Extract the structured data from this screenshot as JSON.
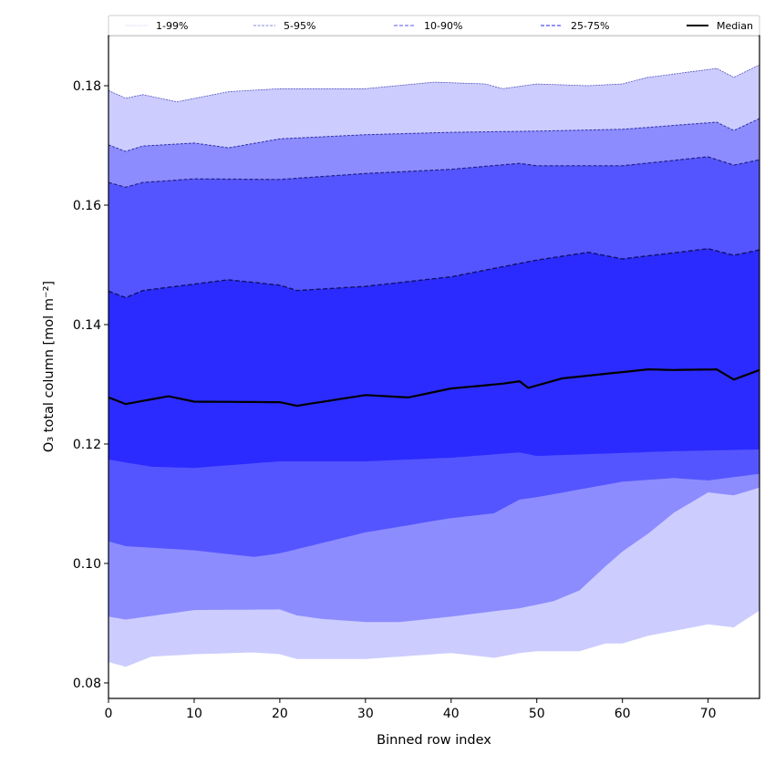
{
  "chart_data": {
    "type": "area",
    "title": "",
    "xlabel": "Binned row index",
    "ylabel": "O₃ total column [mol m⁻²]",
    "xlim": [
      0,
      76
    ],
    "ylim": [
      0.0774,
      0.1884
    ],
    "xticks": [
      0,
      10,
      20,
      30,
      40,
      50,
      60,
      70
    ],
    "xtick_labels": [
      "0",
      "10",
      "20",
      "30",
      "40",
      "50",
      "60",
      "70"
    ],
    "yticks": [
      0.08,
      0.1,
      0.12,
      0.14,
      0.16,
      0.18
    ],
    "ytick_labels": [
      "0.08",
      "0.10",
      "0.12",
      "0.14",
      "0.16",
      "0.18"
    ],
    "grid": false,
    "legend": {
      "placement": "top-outside",
      "entries": [
        {
          "label": "1-99%",
          "color": "#ccccff",
          "style": "dotted-thin"
        },
        {
          "label": "5-95%",
          "color": "#8c8cff",
          "style": "dashed-thin"
        },
        {
          "label": "10-90%",
          "color": "#7070ff",
          "style": "dashed"
        },
        {
          "label": "25-75%",
          "color": "#5555ee",
          "style": "dashed"
        },
        {
          "label": "Median",
          "color": "#000000",
          "style": "solid"
        }
      ]
    },
    "band_colors": {
      "p01_p05": "#ccccff",
      "p05_p10": "#8c8cff",
      "p10_p25": "#5555ff",
      "p25_p75": "#2b2bff"
    },
    "series": [
      {
        "name": "p01",
        "x": [
          0,
          2,
          5,
          10,
          17,
          20,
          22,
          30,
          40,
          45,
          48,
          50,
          55,
          58,
          60,
          63,
          66,
          70,
          73,
          76
        ],
        "values": [
          0.0835,
          0.0827,
          0.0844,
          0.0848,
          0.0851,
          0.0848,
          0.084,
          0.084,
          0.085,
          0.0842,
          0.085,
          0.0853,
          0.0853,
          0.0866,
          0.0866,
          0.0879,
          0.0887,
          0.0898,
          0.0893,
          0.0921
        ]
      },
      {
        "name": "p05",
        "x": [
          0,
          2,
          10,
          20,
          22,
          25,
          30,
          34,
          40,
          45,
          48,
          52,
          55,
          58,
          60,
          63,
          66,
          70,
          73,
          76
        ],
        "values": [
          0.0911,
          0.0906,
          0.0922,
          0.0923,
          0.0913,
          0.0907,
          0.0902,
          0.0902,
          0.0911,
          0.092,
          0.0925,
          0.0937,
          0.0955,
          0.0995,
          0.102,
          0.105,
          0.1085,
          0.1119,
          0.1114,
          0.1127
        ]
      },
      {
        "name": "p10",
        "x": [
          0,
          2,
          10,
          17,
          20,
          30,
          40,
          45,
          48,
          50,
          60,
          66,
          70,
          76
        ],
        "values": [
          0.1037,
          0.1029,
          0.1022,
          0.1011,
          0.1017,
          0.1052,
          0.1076,
          0.1084,
          0.1107,
          0.1111,
          0.1137,
          0.1143,
          0.1139,
          0.115
        ]
      },
      {
        "name": "p25",
        "x": [
          0,
          5,
          10,
          20,
          30,
          40,
          48,
          50,
          60,
          66,
          76
        ],
        "values": [
          0.1174,
          0.1162,
          0.116,
          0.1171,
          0.1171,
          0.1177,
          0.1186,
          0.118,
          0.1185,
          0.1188,
          0.1191
        ]
      },
      {
        "name": "median",
        "x": [
          0,
          2,
          7,
          10,
          20,
          22,
          30,
          35,
          40,
          46,
          48,
          49,
          53,
          63,
          66,
          71,
          73,
          76
        ],
        "values": [
          0.1278,
          0.1267,
          0.128,
          0.1271,
          0.127,
          0.1264,
          0.1282,
          0.1278,
          0.1293,
          0.1301,
          0.1305,
          0.1294,
          0.131,
          0.1325,
          0.1324,
          0.1325,
          0.1308,
          0.1324
        ]
      },
      {
        "name": "p75",
        "x": [
          0,
          2,
          4,
          14,
          20,
          22,
          30,
          40,
          50,
          56,
          60,
          70,
          73,
          76
        ],
        "values": [
          0.1456,
          0.1445,
          0.1457,
          0.1475,
          0.1466,
          0.1457,
          0.1464,
          0.148,
          0.1508,
          0.1521,
          0.151,
          0.1527,
          0.1516,
          0.1525
        ]
      },
      {
        "name": "p90",
        "x": [
          0,
          2,
          4,
          10,
          20,
          30,
          40,
          48,
          50,
          60,
          70,
          73,
          76
        ],
        "values": [
          0.1638,
          0.163,
          0.1638,
          0.1644,
          0.1643,
          0.1653,
          0.166,
          0.167,
          0.1666,
          0.1666,
          0.1681,
          0.1667,
          0.1676
        ]
      },
      {
        "name": "p95",
        "x": [
          0,
          2,
          4,
          10,
          14,
          20,
          30,
          40,
          50,
          60,
          71,
          73,
          76
        ],
        "values": [
          0.1701,
          0.169,
          0.1699,
          0.1704,
          0.1696,
          0.1711,
          0.1718,
          0.1722,
          0.1724,
          0.1727,
          0.1739,
          0.1725,
          0.1745
        ]
      },
      {
        "name": "p99",
        "x": [
          0,
          2,
          4,
          8,
          14,
          20,
          30,
          38,
          44,
          46,
          50,
          56,
          60,
          63,
          71,
          73,
          76
        ],
        "values": [
          0.1792,
          0.1779,
          0.1785,
          0.1773,
          0.179,
          0.1795,
          0.1795,
          0.1806,
          0.1803,
          0.1795,
          0.1803,
          0.18,
          0.1803,
          0.1814,
          0.1829,
          0.1814,
          0.1835
        ]
      }
    ]
  }
}
